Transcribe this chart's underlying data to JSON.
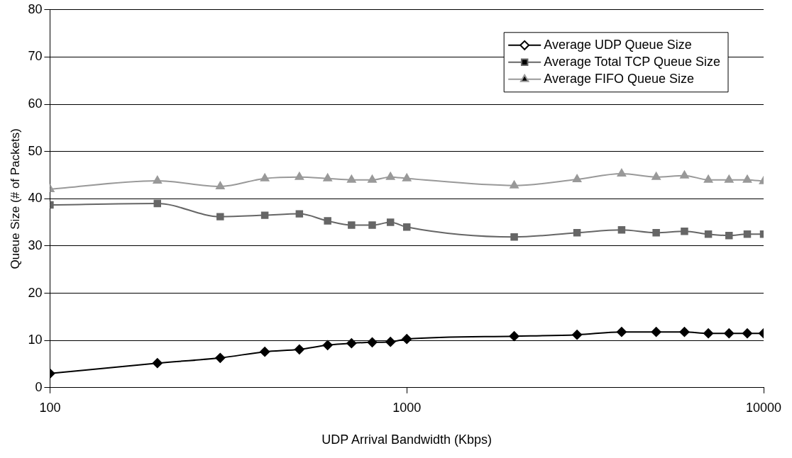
{
  "chart_data": {
    "type": "line",
    "xlabel": "UDP Arrival Bandwidth (Kbps)",
    "ylabel": "Queue Size (# of Packets)",
    "x": [
      100,
      200,
      300,
      400,
      500,
      600,
      700,
      800,
      900,
      1000,
      2000,
      3000,
      4000,
      5000,
      6000,
      7000,
      8000,
      9000,
      10000
    ],
    "series": [
      {
        "name": "Average UDP Queue Size",
        "color": "#000000",
        "marker": "diamond",
        "values": [
          3.0,
          5.2,
          6.3,
          7.6,
          8.1,
          9.0,
          9.4,
          9.6,
          9.7,
          10.3,
          10.9,
          11.2,
          11.8,
          11.8,
          11.8,
          11.5,
          11.5,
          11.5,
          11.5
        ]
      },
      {
        "name": "Average Total TCP Queue Size",
        "color": "#666666",
        "marker": "square",
        "values": [
          38.7,
          39.0,
          36.2,
          36.5,
          36.8,
          35.3,
          34.4,
          34.4,
          35.0,
          34.0,
          31.9,
          32.8,
          33.4,
          32.8,
          33.1,
          32.5,
          32.2,
          32.5,
          32.5
        ]
      },
      {
        "name": "Average FIFO Queue Size",
        "color": "#999999",
        "marker": "triangle",
        "values": [
          42.0,
          43.8,
          42.6,
          44.3,
          44.6,
          44.3,
          44.0,
          44.0,
          44.6,
          44.3,
          42.8,
          44.1,
          45.3,
          44.6,
          44.9,
          44.0,
          44.0,
          44.0,
          43.7
        ]
      }
    ],
    "log": "x",
    "xlim": [
      100,
      10000
    ],
    "xticks": [
      100,
      1000,
      10000
    ],
    "ylim": [
      0,
      80
    ],
    "yticks": [
      0,
      10,
      20,
      30,
      40,
      50,
      60,
      70,
      80
    ],
    "grid": "y",
    "legend": "top right",
    "line_style": "solid"
  }
}
